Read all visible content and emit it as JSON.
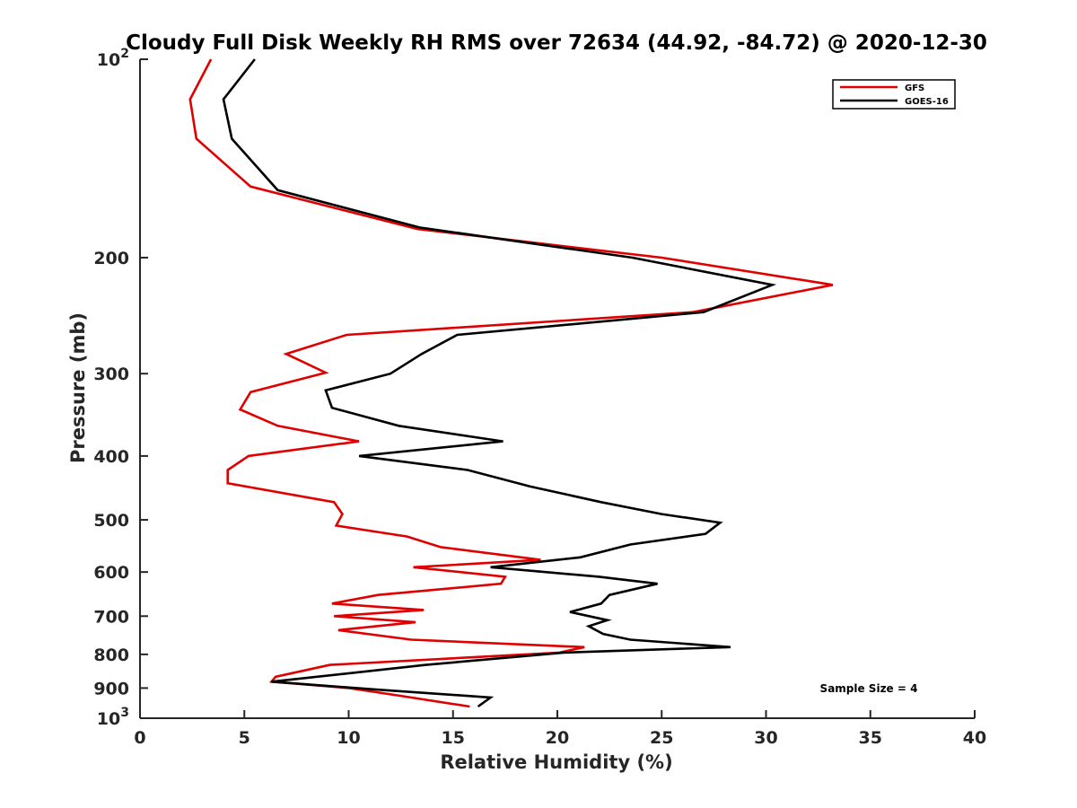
{
  "chart_data": {
    "type": "line",
    "title": "Cloudy Full Disk Weekly RH RMS over 72634 (44.92, -84.72) @ 2020-12-30",
    "xlabel": "Relative Humidity (%)",
    "ylabel": "Pressure (mb)",
    "xlim": [
      0,
      40
    ],
    "ylim": [
      100,
      1000
    ],
    "y_scale": "log",
    "y_reversed": true,
    "x_ticks": [
      "0",
      "5",
      "10",
      "15",
      "20",
      "25",
      "30",
      "35",
      "40"
    ],
    "y_ticks": [
      {
        "value": 100,
        "base": "10",
        "exp": "2"
      },
      {
        "value": 200,
        "label": "200"
      },
      {
        "value": 300,
        "label": "300"
      },
      {
        "value": 400,
        "label": "400"
      },
      {
        "value": 500,
        "label": "500"
      },
      {
        "value": 600,
        "label": "600"
      },
      {
        "value": 700,
        "label": "700"
      },
      {
        "value": 800,
        "label": "800"
      },
      {
        "value": 900,
        "label": "900"
      },
      {
        "value": 1000,
        "base": "10",
        "exp": "3"
      }
    ],
    "grid": false,
    "legend_position": "top-right",
    "annotation": "Sample Size = 4",
    "series": [
      {
        "name": "GFS",
        "color": "#e00000",
        "points": [
          [
            3.4,
            100
          ],
          [
            2.4,
            115
          ],
          [
            2.7,
            132
          ],
          [
            5.3,
            156
          ],
          [
            13.3,
            181
          ],
          [
            25,
            200
          ],
          [
            33.2,
            220
          ],
          [
            26.5,
            242
          ],
          [
            9.9,
            262
          ],
          [
            7.0,
            280
          ],
          [
            8.9,
            299
          ],
          [
            5.3,
            320
          ],
          [
            4.8,
            340
          ],
          [
            6.6,
            360
          ],
          [
            10.5,
            380
          ],
          [
            5.2,
            400
          ],
          [
            4.2,
            420
          ],
          [
            4.2,
            440
          ],
          [
            9.3,
            470
          ],
          [
            9.7,
            490
          ],
          [
            9.4,
            510
          ],
          [
            12.8,
            530
          ],
          [
            14.4,
            550
          ],
          [
            19.2,
            575
          ],
          [
            13.1,
            590
          ],
          [
            17.5,
            610
          ],
          [
            17.3,
            625
          ],
          [
            11.4,
            650
          ],
          [
            9.2,
            670
          ],
          [
            13.6,
            685
          ],
          [
            9.3,
            700
          ],
          [
            13.2,
            715
          ],
          [
            9.5,
            735
          ],
          [
            13,
            760
          ],
          [
            21.3,
            780
          ],
          [
            20.1,
            795
          ],
          [
            9.1,
            830
          ],
          [
            6.5,
            865
          ],
          [
            6.3,
            880
          ],
          [
            10,
            900
          ],
          [
            12.5,
            925
          ],
          [
            15.8,
            960
          ]
        ]
      },
      {
        "name": "GOES-16",
        "color": "#000000",
        "points": [
          [
            5.5,
            100
          ],
          [
            4.0,
            115
          ],
          [
            4.4,
            132
          ],
          [
            6.6,
            158
          ],
          [
            13.4,
            180
          ],
          [
            23.6,
            200
          ],
          [
            30.3,
            220
          ],
          [
            27,
            242
          ],
          [
            15.2,
            262
          ],
          [
            13.5,
            280
          ],
          [
            12.0,
            300
          ],
          [
            8.9,
            318
          ],
          [
            9.2,
            338
          ],
          [
            12.4,
            360
          ],
          [
            17.4,
            380
          ],
          [
            10.5,
            400
          ],
          [
            15.7,
            420
          ],
          [
            18.7,
            445
          ],
          [
            22.1,
            470
          ],
          [
            25,
            490
          ],
          [
            27.8,
            505
          ],
          [
            27.1,
            525
          ],
          [
            23.5,
            545
          ],
          [
            21.1,
            570
          ],
          [
            16.8,
            590
          ],
          [
            22,
            610
          ],
          [
            24.8,
            625
          ],
          [
            22.5,
            650
          ],
          [
            22.1,
            670
          ],
          [
            20.6,
            690
          ],
          [
            22.4,
            710
          ],
          [
            21.5,
            725
          ],
          [
            22.2,
            745
          ],
          [
            23.5,
            760
          ],
          [
            28.3,
            780
          ],
          [
            20.3,
            795
          ],
          [
            13.7,
            830
          ],
          [
            6.3,
            880
          ],
          [
            11.4,
            905
          ],
          [
            16.8,
            930
          ],
          [
            16.2,
            960
          ]
        ]
      }
    ]
  }
}
